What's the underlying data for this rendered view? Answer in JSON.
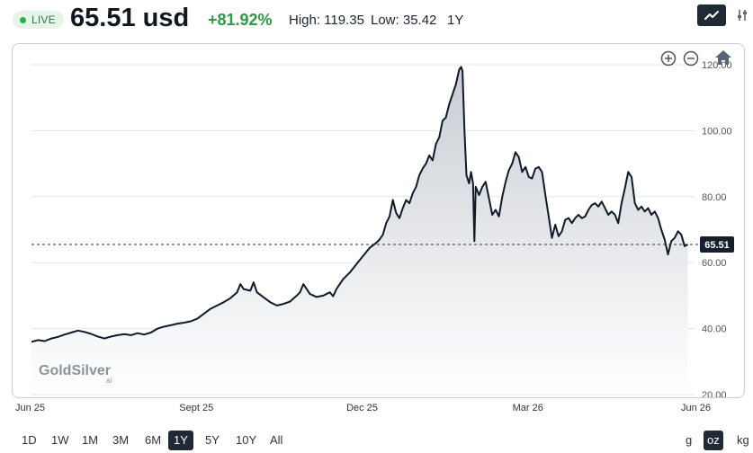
{
  "header": {
    "live_label": "LIVE",
    "price": "65.51 usd",
    "change": "+81.92%",
    "high": "High: 119.35",
    "low": "Low: 35.42",
    "period": "1Y",
    "chart_type_icon": "line-chart-icon",
    "settings_icon": "settings-sliders-icon"
  },
  "controls": {
    "zoom_in_icon": "zoom-in-icon",
    "zoom_out_icon": "zoom-out-icon",
    "home_icon": "home-icon"
  },
  "watermark": {
    "brand": "GoldSilver",
    "sub": "ai"
  },
  "ranges": [
    {
      "label": "1D",
      "active": false
    },
    {
      "label": "1W",
      "active": false
    },
    {
      "label": "1M",
      "active": false
    },
    {
      "label": "3M",
      "active": false
    },
    {
      "label": "6M",
      "active": false
    },
    {
      "label": "1Y",
      "active": true
    },
    {
      "label": "5Y",
      "active": false
    },
    {
      "label": "10Y",
      "active": false
    },
    {
      "label": "All",
      "active": false
    }
  ],
  "units": [
    {
      "label": "g",
      "active": false
    },
    {
      "label": "oz",
      "active": true
    },
    {
      "label": "kg",
      "active": false
    }
  ],
  "colors": {
    "line": "#0f1a2a",
    "area_top": "#c9cdd3",
    "area_bottom": "#ffffff",
    "live_green": "#2bb24c",
    "change_green": "#2f9a46",
    "dark_button": "#1f2a36"
  },
  "chart_data": {
    "type": "area",
    "title": "",
    "xlabel": "",
    "ylabel": "",
    "ylim": [
      20,
      120
    ],
    "yticks": [
      "20.00",
      "40.00",
      "60.00",
      "80.00",
      "100.00",
      "120.00"
    ],
    "ytick_values": [
      20,
      40,
      60,
      80,
      100,
      120
    ],
    "xticks": [
      "Jun 25",
      "Sept 25",
      "Dec 25",
      "Mar 26",
      "Jun 26"
    ],
    "xtick_positions": [
      0,
      0.25,
      0.5,
      0.75,
      1.0
    ],
    "current_value_label": "65.51",
    "current_value": 65.51,
    "grid": true,
    "series": [
      {
        "values": [
          [
            0.0,
            36.0
          ],
          [
            0.01,
            36.5
          ],
          [
            0.02,
            36.2
          ],
          [
            0.03,
            37.0
          ],
          [
            0.04,
            37.5
          ],
          [
            0.05,
            38.2
          ],
          [
            0.06,
            38.8
          ],
          [
            0.07,
            39.4
          ],
          [
            0.08,
            39.0
          ],
          [
            0.09,
            38.4
          ],
          [
            0.1,
            37.6
          ],
          [
            0.11,
            37.0
          ],
          [
            0.12,
            37.6
          ],
          [
            0.13,
            38.0
          ],
          [
            0.14,
            38.3
          ],
          [
            0.15,
            38.0
          ],
          [
            0.16,
            38.6
          ],
          [
            0.17,
            38.2
          ],
          [
            0.18,
            38.8
          ],
          [
            0.19,
            40.0
          ],
          [
            0.2,
            40.6
          ],
          [
            0.21,
            41.0
          ],
          [
            0.22,
            41.5
          ],
          [
            0.23,
            41.8
          ],
          [
            0.24,
            42.2
          ],
          [
            0.25,
            43.0
          ],
          [
            0.26,
            44.5
          ],
          [
            0.27,
            46.0
          ],
          [
            0.28,
            47.0
          ],
          [
            0.29,
            48.0
          ],
          [
            0.3,
            49.2
          ],
          [
            0.31,
            51.0
          ],
          [
            0.315,
            53.5
          ],
          [
            0.32,
            52.0
          ],
          [
            0.33,
            51.5
          ],
          [
            0.335,
            54.0
          ],
          [
            0.34,
            51.0
          ],
          [
            0.35,
            49.5
          ],
          [
            0.36,
            48.0
          ],
          [
            0.37,
            47.0
          ],
          [
            0.38,
            47.5
          ],
          [
            0.39,
            48.2
          ],
          [
            0.4,
            50.0
          ],
          [
            0.405,
            51.0
          ],
          [
            0.41,
            53.5
          ],
          [
            0.42,
            50.5
          ],
          [
            0.43,
            49.6
          ],
          [
            0.44,
            50.0
          ],
          [
            0.45,
            51.0
          ],
          [
            0.455,
            49.8
          ],
          [
            0.46,
            52.0
          ],
          [
            0.47,
            55.0
          ],
          [
            0.48,
            57.0
          ],
          [
            0.49,
            59.5
          ],
          [
            0.5,
            62.0
          ],
          [
            0.51,
            64.5
          ],
          [
            0.52,
            66.0
          ],
          [
            0.525,
            67.0
          ],
          [
            0.53,
            68.5
          ],
          [
            0.535,
            72.0
          ],
          [
            0.54,
            74.0
          ],
          [
            0.545,
            79.0
          ],
          [
            0.55,
            75.0
          ],
          [
            0.555,
            73.5
          ],
          [
            0.56,
            76.5
          ],
          [
            0.565,
            79.0
          ],
          [
            0.57,
            78.0
          ],
          [
            0.575,
            81.0
          ],
          [
            0.58,
            83.0
          ],
          [
            0.585,
            86.5
          ],
          [
            0.59,
            88.5
          ],
          [
            0.595,
            90.0
          ],
          [
            0.6,
            92.5
          ],
          [
            0.605,
            91.0
          ],
          [
            0.61,
            96.0
          ],
          [
            0.615,
            98.0
          ],
          [
            0.62,
            103.0
          ],
          [
            0.625,
            104.0
          ],
          [
            0.63,
            108.0
          ],
          [
            0.635,
            111.0
          ],
          [
            0.64,
            114.0
          ],
          [
            0.645,
            118.5
          ],
          [
            0.648,
            119.35
          ],
          [
            0.65,
            118.0
          ],
          [
            0.653,
            100.0
          ],
          [
            0.656,
            86.5
          ],
          [
            0.66,
            84.0
          ],
          [
            0.663,
            87.5
          ],
          [
            0.666,
            84.0
          ],
          [
            0.668,
            66.5
          ],
          [
            0.67,
            83.0
          ],
          [
            0.675,
            80.5
          ],
          [
            0.68,
            83.0
          ],
          [
            0.685,
            84.5
          ],
          [
            0.69,
            79.5
          ],
          [
            0.695,
            74.5
          ],
          [
            0.7,
            76.0
          ],
          [
            0.705,
            74.0
          ],
          [
            0.71,
            80.0
          ],
          [
            0.715,
            84.5
          ],
          [
            0.72,
            88.0
          ],
          [
            0.725,
            90.0
          ],
          [
            0.73,
            93.5
          ],
          [
            0.735,
            92.0
          ],
          [
            0.74,
            87.5
          ],
          [
            0.745,
            89.0
          ],
          [
            0.75,
            86.0
          ],
          [
            0.755,
            85.5
          ],
          [
            0.76,
            88.5
          ],
          [
            0.765,
            89.0
          ],
          [
            0.77,
            87.5
          ],
          [
            0.775,
            80.5
          ],
          [
            0.78,
            74.0
          ],
          [
            0.785,
            67.5
          ],
          [
            0.79,
            71.5
          ],
          [
            0.795,
            68.0
          ],
          [
            0.8,
            69.5
          ],
          [
            0.805,
            73.0
          ],
          [
            0.81,
            73.5
          ],
          [
            0.815,
            72.0
          ],
          [
            0.82,
            73.5
          ],
          [
            0.825,
            74.5
          ],
          [
            0.83,
            73.5
          ],
          [
            0.835,
            74.0
          ],
          [
            0.84,
            76.0
          ],
          [
            0.845,
            77.5
          ],
          [
            0.85,
            78.0
          ],
          [
            0.855,
            77.0
          ],
          [
            0.86,
            78.5
          ],
          [
            0.865,
            76.5
          ],
          [
            0.87,
            74.5
          ],
          [
            0.875,
            75.5
          ],
          [
            0.88,
            74.5
          ],
          [
            0.885,
            72.0
          ],
          [
            0.89,
            78.0
          ],
          [
            0.895,
            82.5
          ],
          [
            0.9,
            87.5
          ],
          [
            0.905,
            86.0
          ],
          [
            0.91,
            78.0
          ],
          [
            0.915,
            76.0
          ],
          [
            0.92,
            77.0
          ],
          [
            0.925,
            75.5
          ],
          [
            0.93,
            76.5
          ],
          [
            0.935,
            74.5
          ],
          [
            0.94,
            75.5
          ],
          [
            0.945,
            73.5
          ],
          [
            0.95,
            70.0
          ],
          [
            0.955,
            67.0
          ],
          [
            0.96,
            62.5
          ],
          [
            0.965,
            66.5
          ],
          [
            0.97,
            67.5
          ],
          [
            0.975,
            69.5
          ],
          [
            0.98,
            68.5
          ],
          [
            0.985,
            65.0
          ],
          [
            0.99,
            65.51
          ]
        ]
      }
    ]
  }
}
